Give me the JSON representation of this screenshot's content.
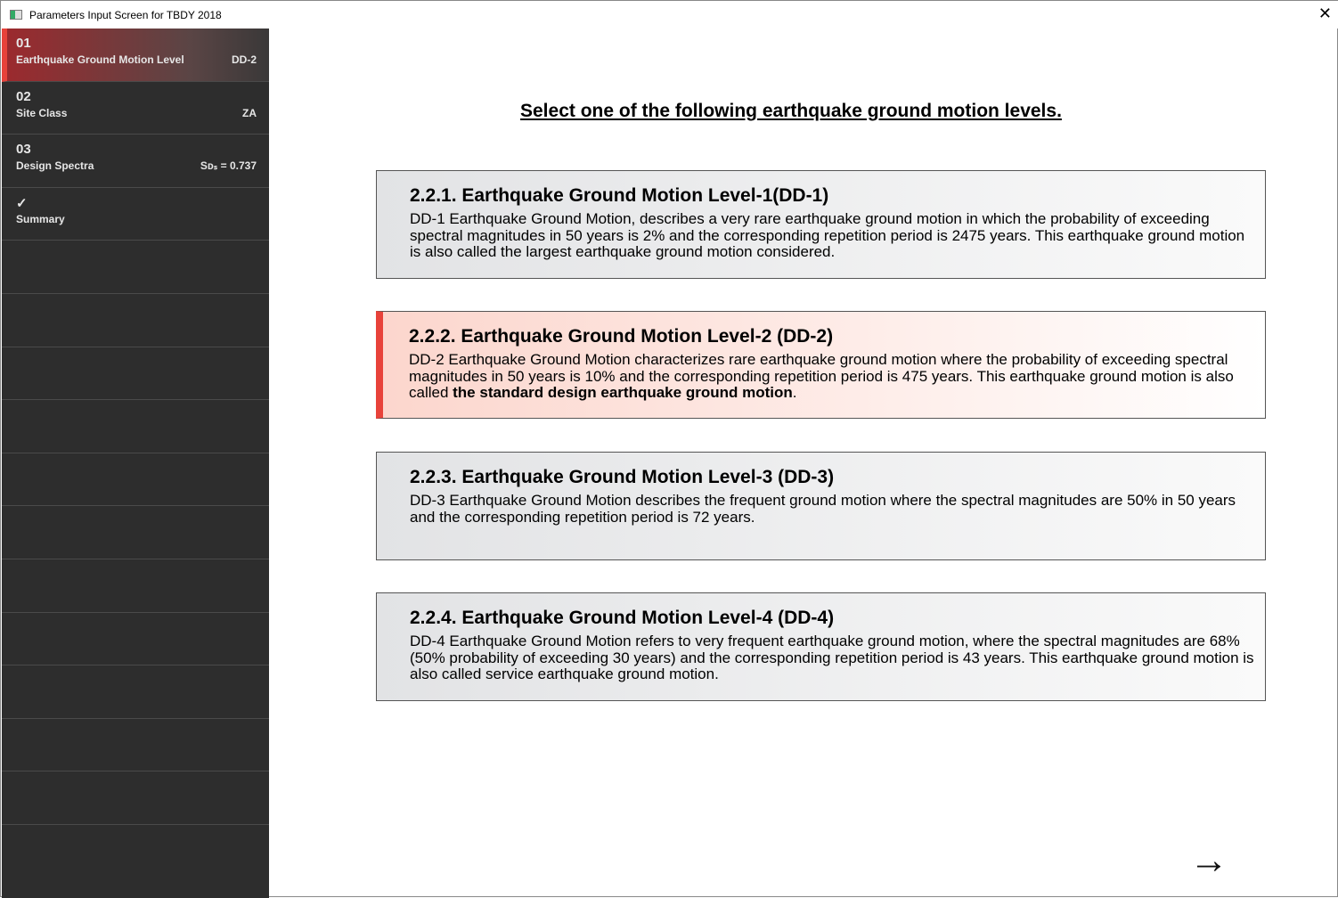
{
  "window": {
    "title": "Parameters Input Screen for TBDY 2018",
    "close": "✕"
  },
  "sidebar": {
    "items": [
      {
        "num": "01",
        "label": "Earthquake Ground Motion Level",
        "value": "DD-2",
        "active": true
      },
      {
        "num": "02",
        "label": "Site Class",
        "value": "ZA"
      },
      {
        "num": "03",
        "label": "Design Spectra",
        "value": "Sᴅₛ = 0.737"
      },
      {
        "num": "✓",
        "label": "Summary",
        "value": ""
      }
    ]
  },
  "main": {
    "heading": "Select one of the following earthquake ground motion levels.",
    "options": [
      {
        "title": "2.2.1. Earthquake Ground Motion Level-1(DD-1)",
        "desc": "DD-1 Earthquake Ground Motion, describes a very rare earthquake ground motion in which the probability of exceeding spectral magnitudes in 50 years is 2% and the corresponding repetition period is 2475 years. This earthquake ground motion is also called the largest earthquake ground motion considered.",
        "desc_bold": "",
        "desc_end": ""
      },
      {
        "title": "2.2.2. Earthquake Ground Motion Level-2 (DD-2)",
        "desc": "DD-2 Earthquake Ground Motion characterizes rare earthquake ground motion where the probability of exceeding spectral magnitudes in 50 years is 10% and the corresponding repetition period is 475 years. This earthquake ground motion is also called ",
        "desc_bold": "the standard design earthquake ground motion",
        "desc_end": ".",
        "selected": true
      },
      {
        "title": "2.2.3. Earthquake Ground Motion Level-3 (DD-3)",
        "desc": "DD-3 Earthquake Ground Motion describes the frequent ground motion where the spectral magnitudes are 50% in 50 years and the corresponding repetition period is 72 years.",
        "desc_bold": "",
        "desc_end": ""
      },
      {
        "title": "2.2.4. Earthquake Ground Motion Level-4 (DD-4)",
        "desc": "DD-4 Earthquake Ground Motion refers to very frequent earthquake ground motion, where the spectral magnitudes are 68% (50% probability of exceeding 30 years) and the corresponding repetition period is 43 years. This earthquake ground motion is also called service earthquake ground motion.",
        "desc_bold": "",
        "desc_end": ""
      }
    ],
    "next": "→"
  },
  "colors": {
    "accent": "#e8423a",
    "sidebar": "#2d2d2d"
  }
}
